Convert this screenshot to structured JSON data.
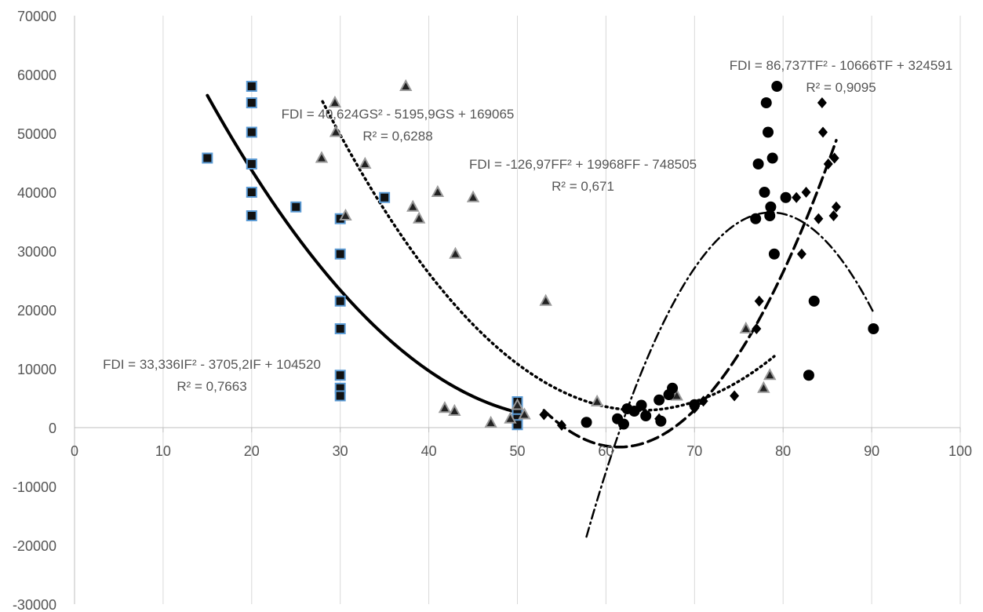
{
  "chart_data": {
    "type": "scatter",
    "title": "",
    "xlabel": "",
    "ylabel": "",
    "xlim": [
      0,
      100
    ],
    "ylim": [
      -30000,
      70000
    ],
    "x_ticks": [
      0,
      10,
      20,
      30,
      40,
      50,
      60,
      70,
      80,
      90,
      100
    ],
    "y_ticks": [
      -30000,
      -20000,
      -10000,
      0,
      10000,
      20000,
      30000,
      40000,
      50000,
      60000,
      70000
    ],
    "grid": "vertical",
    "legend": "none",
    "series": [
      {
        "marker": "square",
        "color": "#111111",
        "edge": "#5b9bd5",
        "x": [
          15,
          20,
          20,
          20,
          20,
          20,
          20,
          25,
          30,
          30,
          30,
          30,
          30,
          30,
          30,
          35,
          50,
          50,
          50,
          50
        ],
        "y": [
          45800,
          58000,
          55200,
          50200,
          44800,
          40000,
          36000,
          37500,
          35500,
          29500,
          21500,
          16800,
          8900,
          6700,
          5400,
          39100,
          4400,
          2600,
          1500,
          500
        ]
      },
      {
        "marker": "triangle",
        "color": "#222222",
        "edge": "#999999",
        "x": [
          27.9,
          29.4,
          29.5,
          30.6,
          32.8,
          37.4,
          38.2,
          38.9,
          41,
          41.8,
          42.9,
          43,
          45,
          47,
          49.2,
          50,
          50.8,
          53.2,
          59,
          75.8,
          77.8,
          78.5,
          68
        ],
        "y": [
          45800,
          55200,
          50200,
          36000,
          44800,
          58000,
          37500,
          35500,
          40000,
          3300,
          2800,
          29500,
          39100,
          800,
          1500,
          3800,
          2200,
          21500,
          4400,
          16800,
          6700,
          8900,
          5400
        ]
      },
      {
        "marker": "circle",
        "color": "#000000",
        "x": [
          57.8,
          61.3,
          62,
          62.4,
          63.2,
          64,
          64.5,
          66,
          66.2,
          67.1,
          67.5,
          70,
          76.9,
          77.2,
          77.9,
          78.1,
          78.3,
          78.5,
          78.6,
          78.8,
          79,
          79.3,
          80.3,
          82.9,
          83.5,
          90.2
        ],
        "y": [
          900,
          1500,
          600,
          3200,
          2800,
          3800,
          2000,
          4700,
          1100,
          5600,
          6700,
          3900,
          35500,
          44800,
          40000,
          55200,
          50200,
          36000,
          37500,
          45800,
          29500,
          58000,
          39100,
          8900,
          21500,
          16800
        ]
      },
      {
        "marker": "diamond",
        "color": "#000000",
        "x": [
          53,
          55,
          66,
          70,
          71,
          74.5,
          77,
          77.3,
          81.5,
          82.1,
          82.6,
          84,
          84.4,
          84.5,
          85.1,
          85.7,
          85.8,
          86
        ],
        "y": [
          2200,
          400,
          1500,
          3300,
          4500,
          5400,
          16800,
          21500,
          39100,
          29500,
          40000,
          35500,
          55200,
          50200,
          44800,
          36000,
          45800,
          37500
        ]
      }
    ],
    "trendlines": [
      {
        "name": "IF",
        "style": "solid",
        "equation": "FDI = 33,336IF² - 3705,2IF + 104520",
        "r2": "R² = 0,7663",
        "coefficients": [
          33.336,
          -3705.2,
          104520
        ],
        "x_range": [
          15,
          50
        ]
      },
      {
        "name": "GS",
        "style": "dotted",
        "equation": "FDI = 40,624GS² - 5195,9GS + 169065",
        "r2": "R² = 0,6288",
        "coefficients": [
          40.624,
          -5195.9,
          169065
        ],
        "x_range": [
          28,
          79
        ]
      },
      {
        "name": "FF",
        "style": "dash-dot",
        "equation": "FDI = -126,97FF² + 19968FF - 748505",
        "r2": "R² = 0,671",
        "coefficients": [
          -126.97,
          19968,
          -748505
        ],
        "x_range": [
          57.8,
          90.2
        ]
      },
      {
        "name": "TF",
        "style": "dashed",
        "equation": "FDI = 86,737TF² - 10666TF + 324591",
        "r2": "R² = 0,9095",
        "coefficients": [
          86.737,
          -10666,
          324591
        ],
        "x_range": [
          53,
          86
        ]
      }
    ]
  }
}
